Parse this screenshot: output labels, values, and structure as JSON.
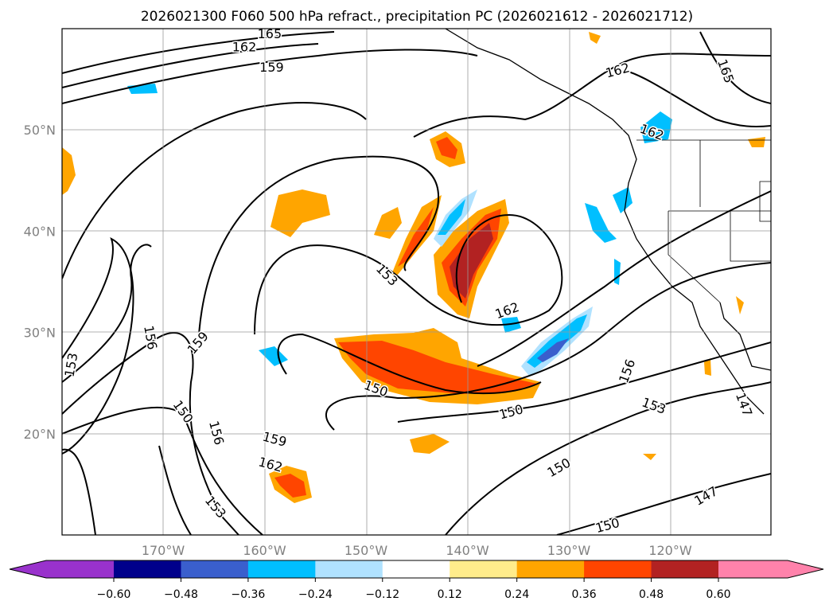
{
  "title": "2026021300 F060 500 hPa refract., precipitation PC (2026021612 - 2026021712)",
  "map": {
    "lon_ticks": [
      {
        "lon": -170,
        "label": "170°W"
      },
      {
        "lon": -160,
        "label": "160°W"
      },
      {
        "lon": -150,
        "label": "150°W"
      },
      {
        "lon": -140,
        "label": "140°W"
      },
      {
        "lon": -130,
        "label": "130°W"
      },
      {
        "lon": -120,
        "label": "120°W"
      }
    ],
    "lat_ticks": [
      {
        "lat": 50,
        "label": "50°N"
      },
      {
        "lat": 40,
        "label": "40°N"
      },
      {
        "lat": 30,
        "label": "30°N"
      },
      {
        "lat": 20,
        "label": "20°N"
      }
    ],
    "contour_labels": [
      {
        "text": "165",
        "lon": -159.5,
        "lat": 59.5,
        "rot": 0
      },
      {
        "text": "162",
        "lon": -162,
        "lat": 58.2,
        "rot": 0
      },
      {
        "text": "159",
        "lon": -159.3,
        "lat": 56.2,
        "rot": 0
      },
      {
        "text": "162",
        "lon": -125.2,
        "lat": 55.9,
        "rot": -15
      },
      {
        "text": "165",
        "lon": -114.5,
        "lat": 55.8,
        "rot": 70
      },
      {
        "text": "162",
        "lon": -121.8,
        "lat": 49.8,
        "rot": 20
      },
      {
        "text": "153",
        "lon": -147.9,
        "lat": 35.7,
        "rot": 45
      },
      {
        "text": "162",
        "lon": -136.1,
        "lat": 32.2,
        "rot": -20
      },
      {
        "text": "156",
        "lon": -171.2,
        "lat": 29.5,
        "rot": 80
      },
      {
        "text": "159",
        "lon": -166.6,
        "lat": 29.0,
        "rot": -50
      },
      {
        "text": "153",
        "lon": -179.1,
        "lat": 26.8,
        "rot": -80
      },
      {
        "text": "150",
        "lon": -149.0,
        "lat": 24.5,
        "rot": 20
      },
      {
        "text": "156",
        "lon": -124.3,
        "lat": 26.2,
        "rot": -70
      },
      {
        "text": "153",
        "lon": -121.6,
        "lat": 22.8,
        "rot": 20
      },
      {
        "text": "147",
        "lon": -112.7,
        "lat": 22.9,
        "rot": 70
      },
      {
        "text": "150",
        "lon": -168.0,
        "lat": 22.2,
        "rot": 55
      },
      {
        "text": "156",
        "lon": -164.7,
        "lat": 20.1,
        "rot": 75
      },
      {
        "text": "150",
        "lon": -135.7,
        "lat": 22.2,
        "rot": -15
      },
      {
        "text": "159",
        "lon": -159.0,
        "lat": 19.5,
        "rot": 15
      },
      {
        "text": "162",
        "lon": -159.4,
        "lat": 17.0,
        "rot": 15
      },
      {
        "text": "150",
        "lon": -131.0,
        "lat": 16.7,
        "rot": -30
      },
      {
        "text": "153",
        "lon": -164.8,
        "lat": 12.8,
        "rot": 50
      },
      {
        "text": "147",
        "lon": -116.5,
        "lat": 13.9,
        "rot": -30
      },
      {
        "text": "150",
        "lon": -126.2,
        "lat": 11.0,
        "rot": -15
      }
    ]
  },
  "colorbar": {
    "colors": [
      "#9932cc",
      "#00008b",
      "#3a5fcd",
      "#00bfff",
      "#b0e2ff",
      "#ffffff",
      "#ffec8b",
      "#ffa500",
      "#ff4500",
      "#b22222",
      "#ff82ab"
    ],
    "tick_labels": [
      "−0.60",
      "−0.48",
      "−0.36",
      "−0.24",
      "−0.12",
      "0.12",
      "0.24",
      "0.36",
      "0.48",
      "0.60"
    ]
  }
}
